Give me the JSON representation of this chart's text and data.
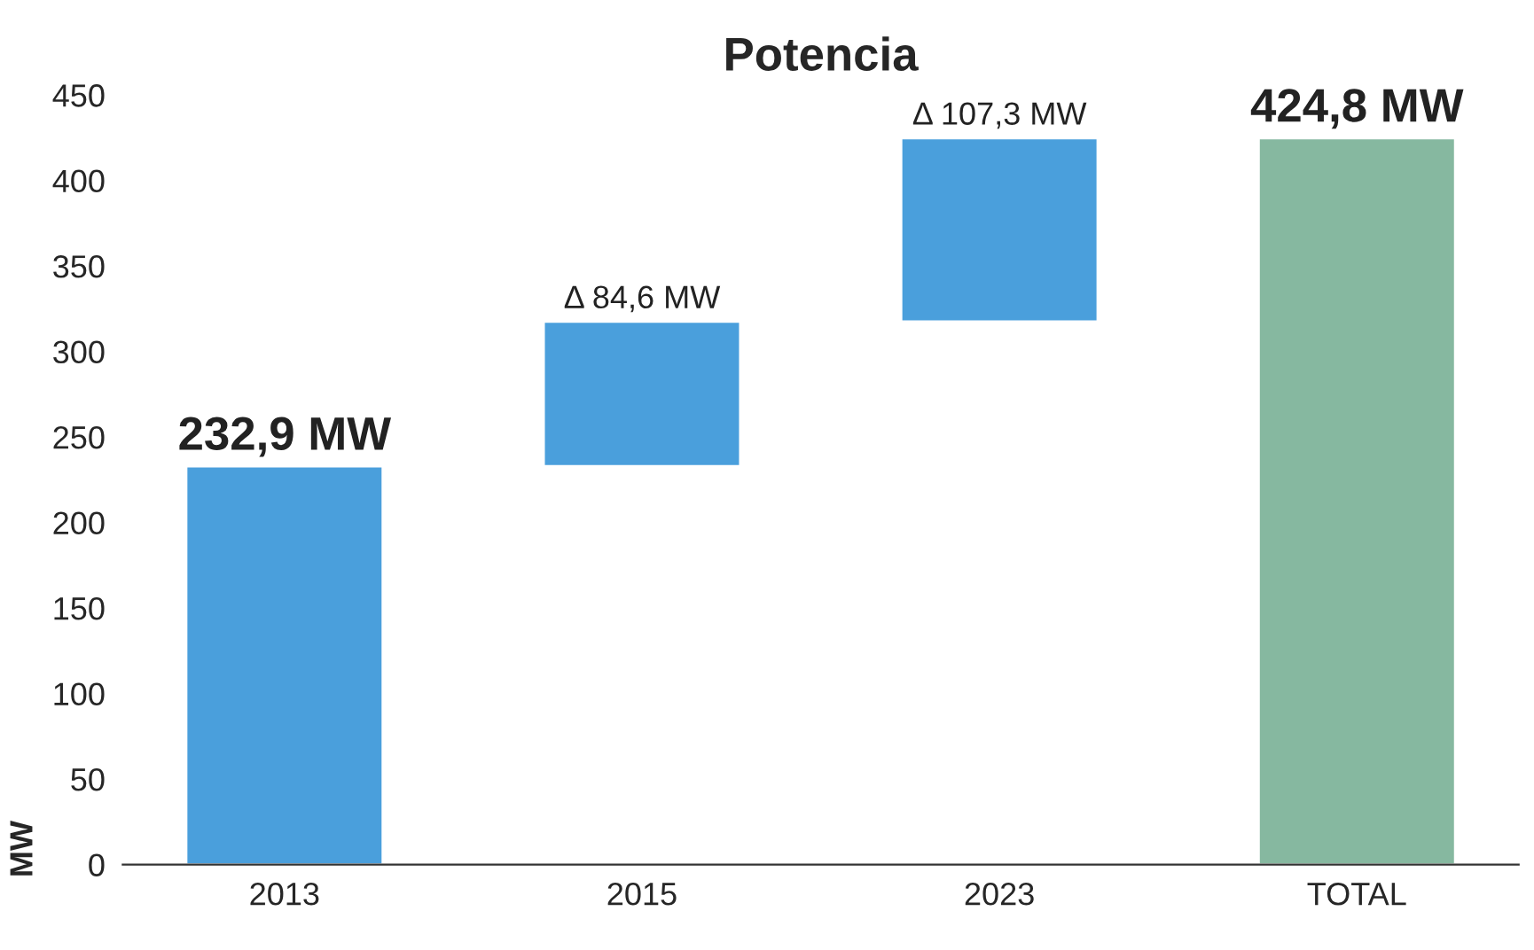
{
  "chart_data": {
    "type": "bar",
    "title": "Potencia",
    "ylabel": "MW",
    "categories": [
      "2013",
      "2015",
      "2023",
      "TOTAL"
    ],
    "values": [
      232.9,
      84.6,
      107.3,
      424.8
    ],
    "base": [
      0,
      232.9,
      317.5,
      0
    ],
    "value_labels": [
      "232,9 MW",
      "Δ 84,6 MW",
      "Δ 107,3 MW",
      "424,8 MW"
    ],
    "colors": [
      "#4a9fdc",
      "#4a9fdc",
      "#4a9fdc",
      "#86b8a0"
    ],
    "ylim": [
      0,
      450
    ],
    "yticks": [
      0,
      50,
      100,
      150,
      200,
      250,
      300,
      350,
      400,
      450
    ],
    "grid": false
  }
}
